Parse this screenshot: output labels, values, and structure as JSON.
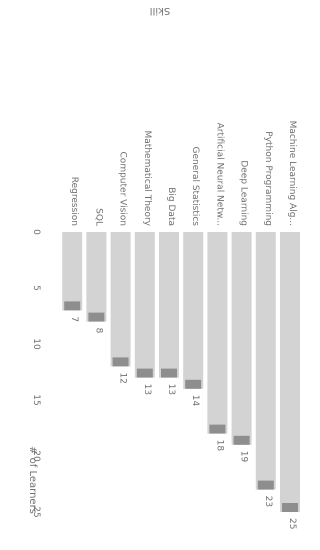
{
  "chart_data": {
    "type": "bar",
    "orientation": "horizontal",
    "title": "Skill",
    "xlabel": "# of Learners",
    "ylabel": "",
    "categories": [
      "Machine Learning Alg...",
      "Python Programming",
      "Deep Learning",
      "Artificial Neural Netw...",
      "General Statistics",
      "Big Data",
      "Mathematical Theory",
      "Computer Vision",
      "SQL",
      "Regression"
    ],
    "values": [
      25,
      23,
      19,
      18,
      14,
      13,
      13,
      12,
      8,
      7
    ],
    "xlim": [
      0,
      25
    ],
    "ticks": [
      0,
      5,
      10,
      15,
      20,
      25
    ],
    "grid": false,
    "legend": "none",
    "colors": {
      "bar": "#d3d3d3",
      "accent": "#8e8e8e",
      "text": "#707070"
    }
  }
}
